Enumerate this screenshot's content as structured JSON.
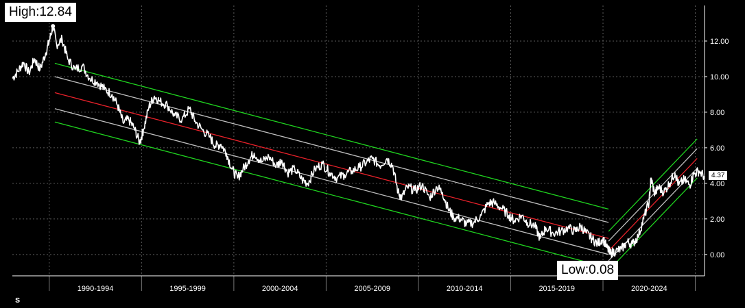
{
  "chart_data": {
    "type": "line",
    "title": "",
    "xlabel": "",
    "ylabel": "",
    "ylim": [
      -1.2,
      14.0
    ],
    "yticks": [
      "0.00",
      "2.00",
      "4.00",
      "6.00",
      "8.00",
      "10.00",
      "12.00"
    ],
    "ytick_values": [
      0,
      2,
      4,
      6,
      8,
      10,
      12
    ],
    "x_categories": [
      "1990-1994",
      "1995-1999",
      "2000-2004",
      "2005-2009",
      "2010-2014",
      "2015-2019",
      "2020-2024"
    ],
    "x_range": [
      1988.0,
      2025.5
    ],
    "grid": true,
    "series": [
      {
        "color": "#ffffff",
        "points": [
          [
            1988.0,
            9.9
          ],
          [
            1988.3,
            10.3
          ],
          [
            1988.6,
            10.8
          ],
          [
            1988.9,
            10.2
          ],
          [
            1989.2,
            11.0
          ],
          [
            1989.5,
            10.4
          ],
          [
            1989.8,
            11.3
          ],
          [
            1990.0,
            12.0
          ],
          [
            1990.2,
            12.84
          ],
          [
            1990.4,
            11.8
          ],
          [
            1990.7,
            12.1
          ],
          [
            1991.0,
            11.0
          ],
          [
            1991.4,
            10.4
          ],
          [
            1991.8,
            10.6
          ],
          [
            1992.2,
            9.9
          ],
          [
            1992.6,
            9.7
          ],
          [
            1993.0,
            9.3
          ],
          [
            1993.4,
            9.0
          ],
          [
            1993.7,
            8.4
          ],
          [
            1994.0,
            7.4
          ],
          [
            1994.3,
            7.6
          ],
          [
            1994.6,
            7.1
          ],
          [
            1994.9,
            6.3
          ],
          [
            1995.1,
            7.0
          ],
          [
            1995.4,
            8.3
          ],
          [
            1995.7,
            8.9
          ],
          [
            1996.0,
            8.6
          ],
          [
            1996.4,
            8.4
          ],
          [
            1996.8,
            7.8
          ],
          [
            1997.2,
            7.6
          ],
          [
            1997.6,
            8.2
          ],
          [
            1997.9,
            7.5
          ],
          [
            1998.3,
            7.0
          ],
          [
            1998.7,
            6.6
          ],
          [
            1999.0,
            6.1
          ],
          [
            1999.3,
            6.2
          ],
          [
            1999.6,
            5.7
          ],
          [
            1999.9,
            4.8
          ],
          [
            2000.2,
            4.3
          ],
          [
            2000.5,
            4.8
          ],
          [
            2000.8,
            5.3
          ],
          [
            2001.1,
            5.7
          ],
          [
            2001.5,
            5.2
          ],
          [
            2001.9,
            5.5
          ],
          [
            2002.3,
            5.0
          ],
          [
            2002.6,
            5.3
          ],
          [
            2002.9,
            4.6
          ],
          [
            2003.3,
            4.8
          ],
          [
            2003.7,
            4.2
          ],
          [
            2004.0,
            4.0
          ],
          [
            2004.4,
            4.8
          ],
          [
            2004.8,
            5.1
          ],
          [
            2005.2,
            4.6
          ],
          [
            2005.6,
            4.3
          ],
          [
            2006.0,
            4.5
          ],
          [
            2006.4,
            4.7
          ],
          [
            2006.8,
            4.9
          ],
          [
            2007.2,
            5.2
          ],
          [
            2007.5,
            5.4
          ],
          [
            2007.9,
            5.0
          ],
          [
            2008.3,
            5.4
          ],
          [
            2008.6,
            5.0
          ],
          [
            2008.9,
            3.5
          ],
          [
            2009.1,
            3.2
          ],
          [
            2009.4,
            3.8
          ],
          [
            2009.8,
            3.6
          ],
          [
            2010.2,
            3.9
          ],
          [
            2010.6,
            3.2
          ],
          [
            2011.0,
            3.8
          ],
          [
            2011.3,
            3.5
          ],
          [
            2011.6,
            2.6
          ],
          [
            2011.9,
            2.1
          ],
          [
            2012.3,
            2.0
          ],
          [
            2012.6,
            1.7
          ],
          [
            2013.0,
            1.8
          ],
          [
            2013.4,
            2.2
          ],
          [
            2013.8,
            2.9
          ],
          [
            2014.1,
            2.9
          ],
          [
            2014.5,
            2.6
          ],
          [
            2014.9,
            2.2
          ],
          [
            2015.2,
            1.9
          ],
          [
            2015.6,
            2.2
          ],
          [
            2015.9,
            1.8
          ],
          [
            2016.3,
            1.6
          ],
          [
            2016.6,
            0.9
          ],
          [
            2016.9,
            1.5
          ],
          [
            2017.3,
            1.2
          ],
          [
            2017.7,
            1.3
          ],
          [
            2018.1,
            1.5
          ],
          [
            2018.5,
            1.3
          ],
          [
            2018.8,
            1.6
          ],
          [
            2019.1,
            1.2
          ],
          [
            2019.4,
            0.9
          ],
          [
            2019.7,
            0.6
          ],
          [
            2020.0,
            0.9
          ],
          [
            2020.2,
            0.4
          ],
          [
            2020.4,
            0.08
          ],
          [
            2020.7,
            0.2
          ],
          [
            2021.0,
            0.3
          ],
          [
            2021.3,
            0.7
          ],
          [
            2021.6,
            0.6
          ],
          [
            2021.9,
            1.0
          ],
          [
            2022.2,
            2.0
          ],
          [
            2022.5,
            3.0
          ],
          [
            2022.6,
            4.3
          ],
          [
            2022.8,
            3.4
          ],
          [
            2023.0,
            3.8
          ],
          [
            2023.3,
            3.5
          ],
          [
            2023.6,
            4.0
          ],
          [
            2023.9,
            4.6
          ],
          [
            2024.1,
            3.9
          ],
          [
            2024.4,
            4.2
          ],
          [
            2024.7,
            3.9
          ],
          [
            2024.9,
            4.5
          ],
          [
            2025.2,
            4.7
          ],
          [
            2025.5,
            4.37
          ]
        ]
      }
    ],
    "regression_channels": [
      {
        "x": [
          1990.3,
          2020.3
        ],
        "mid": [
          9.1,
          0.9
        ],
        "inner_offset": 0.9,
        "outer_offset": 1.65
      },
      {
        "x": [
          2020.3,
          2025.1
        ],
        "mid": [
          0.2,
          5.4
        ],
        "inner_offset": 0.55,
        "outer_offset": 1.1
      }
    ],
    "colors": {
      "price": "#ffffff",
      "regression": "#e8212a",
      "inner_band": "#bfbfbf",
      "outer_band": "#1fd31f",
      "grid": "#5a5a5a"
    },
    "annotations": {
      "high": "High:12.84",
      "low": "Low:0.08",
      "last": "4.37"
    }
  },
  "footer": {
    "logo_text": "s"
  }
}
